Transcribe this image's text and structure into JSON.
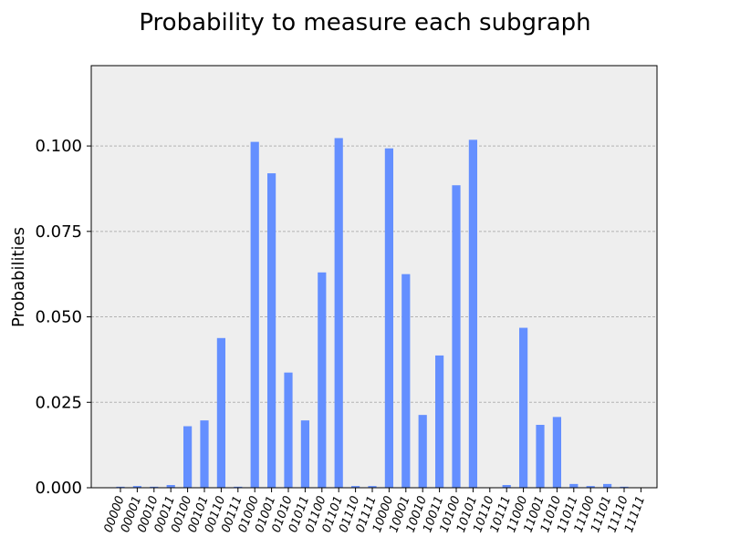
{
  "chart_data": {
    "type": "bar",
    "title": "Probability to measure each subgraph",
    "xlabel": "",
    "ylabel": "Probabilities",
    "ylim": [
      0,
      0.1235
    ],
    "yticks": [
      0.0,
      0.025,
      0.05,
      0.075,
      0.1
    ],
    "ytick_labels": [
      "0.000",
      "0.025",
      "0.050",
      "0.075",
      "0.100"
    ],
    "grid": "horizontal dashed",
    "background_color": "#eeeeee",
    "bar_color": "#648fff",
    "grid_color": "#b3b3b3",
    "categories": [
      "00000",
      "00001",
      "00010",
      "00011",
      "00100",
      "00101",
      "00110",
      "00111",
      "01000",
      "01001",
      "01010",
      "01011",
      "01100",
      "01101",
      "01110",
      "01111",
      "10000",
      "10001",
      "10010",
      "10011",
      "10100",
      "10101",
      "10110",
      "10111",
      "11000",
      "11001",
      "11010",
      "11011",
      "11100",
      "11101",
      "11110",
      "11111"
    ],
    "values": [
      0.0003,
      0.0005,
      0.0003,
      0.0008,
      0.018,
      0.0197,
      0.0438,
      0.0003,
      0.1012,
      0.092,
      0.0337,
      0.0197,
      0.063,
      0.1023,
      0.0005,
      0.0005,
      0.0993,
      0.0625,
      0.0213,
      0.0387,
      0.0885,
      0.1018,
      0.0001,
      0.0008,
      0.0468,
      0.0184,
      0.0207,
      0.0011,
      0.0005,
      0.0011,
      0.0003,
      0.0
    ]
  }
}
